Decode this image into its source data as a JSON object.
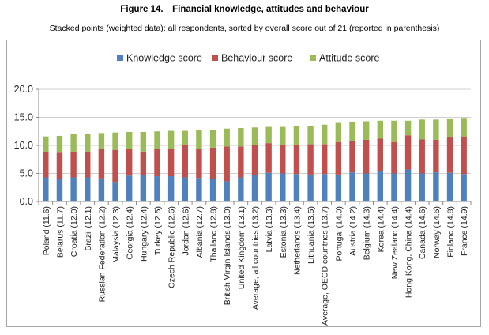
{
  "figure": {
    "title": "Figure 14. Financial knowledge, attitudes and behaviour",
    "subtitle": "Stacked points (weighted data): all respondents, sorted by overall score out of 21 (reported in parenthesis)"
  },
  "chart_data": {
    "type": "bar",
    "stacked": true,
    "title": "Figure 14. Financial knowledge, attitudes and behaviour",
    "subtitle": "Stacked points (weighted data): all respondents, sorted by overall score out of 21 (reported in parenthesis)",
    "xlabel": "",
    "ylabel": "",
    "ylim": [
      0,
      20
    ],
    "yticks": [
      "0.0",
      "5.0",
      "10.0",
      "15.0",
      "20.0"
    ],
    "ytick_values": [
      0,
      5,
      10,
      15,
      20
    ],
    "grid": true,
    "legend_position": "top",
    "categories": [
      "Poland (11.6)",
      "Belarus (11.7)",
      "Croatia (12.0)",
      "Brazil (12.1)",
      "Russian Federation (12.2)",
      "Malaysia (12.3)",
      "Georgia (12.4)",
      "Hungary (12.4)",
      "Turkey (12.5)",
      "Czech Republic (12.6)",
      "Jordan (12.6)",
      "Albania (12.7)",
      "Thailand (12.8)",
      "British Virgin Islands (13.0)",
      "United Kingdom (13.1)",
      "Average, all countries (13.2)",
      "Latvia (13.3)",
      "Estonia (13.3)",
      "Netherlands (13.4)",
      "Lithuania (13.5)",
      "Average, OECD countries (13.7)",
      "Portugal (14.0)",
      "Austria (14.2)",
      "Belgium (14.3)",
      "Korea (14.4)",
      "New Zealand (14.4)",
      "Hong Kong, China (14.4)",
      "Canada (14.6)",
      "Norway (14.6)",
      "Finland (14.8)",
      "France (14.9)"
    ],
    "series": [
      {
        "name": "Knowledge score",
        "color": "#4f81bd",
        "values": [
          4.3,
          4.0,
          4.3,
          4.3,
          4.1,
          3.5,
          4.6,
          4.7,
          4.5,
          4.5,
          4.3,
          4.2,
          4.0,
          3.6,
          4.3,
          4.7,
          5.1,
          5.0,
          4.9,
          4.8,
          4.9,
          4.8,
          5.2,
          5.0,
          5.4,
          5.0,
          5.7,
          5.0,
          5.2,
          5.1,
          4.9
        ]
      },
      {
        "name": "Behaviour score",
        "color": "#c0504d",
        "values": [
          4.5,
          4.7,
          4.6,
          4.6,
          5.2,
          5.7,
          4.8,
          4.2,
          4.9,
          4.9,
          5.7,
          5.1,
          5.6,
          6.2,
          5.5,
          5.3,
          5.3,
          5.1,
          5.2,
          5.4,
          5.3,
          5.8,
          5.6,
          6.0,
          5.8,
          5.6,
          6.1,
          6.1,
          5.8,
          6.3,
          6.7
        ]
      },
      {
        "name": "Attitude score",
        "color": "#9bbb59",
        "values": [
          2.8,
          3.0,
          3.1,
          3.2,
          2.9,
          3.1,
          3.0,
          3.5,
          3.1,
          3.2,
          2.6,
          3.4,
          3.2,
          3.2,
          3.3,
          3.2,
          2.9,
          3.2,
          3.3,
          3.3,
          3.5,
          3.4,
          3.4,
          3.3,
          3.2,
          3.8,
          2.6,
          3.5,
          3.6,
          3.4,
          3.3
        ]
      }
    ]
  }
}
